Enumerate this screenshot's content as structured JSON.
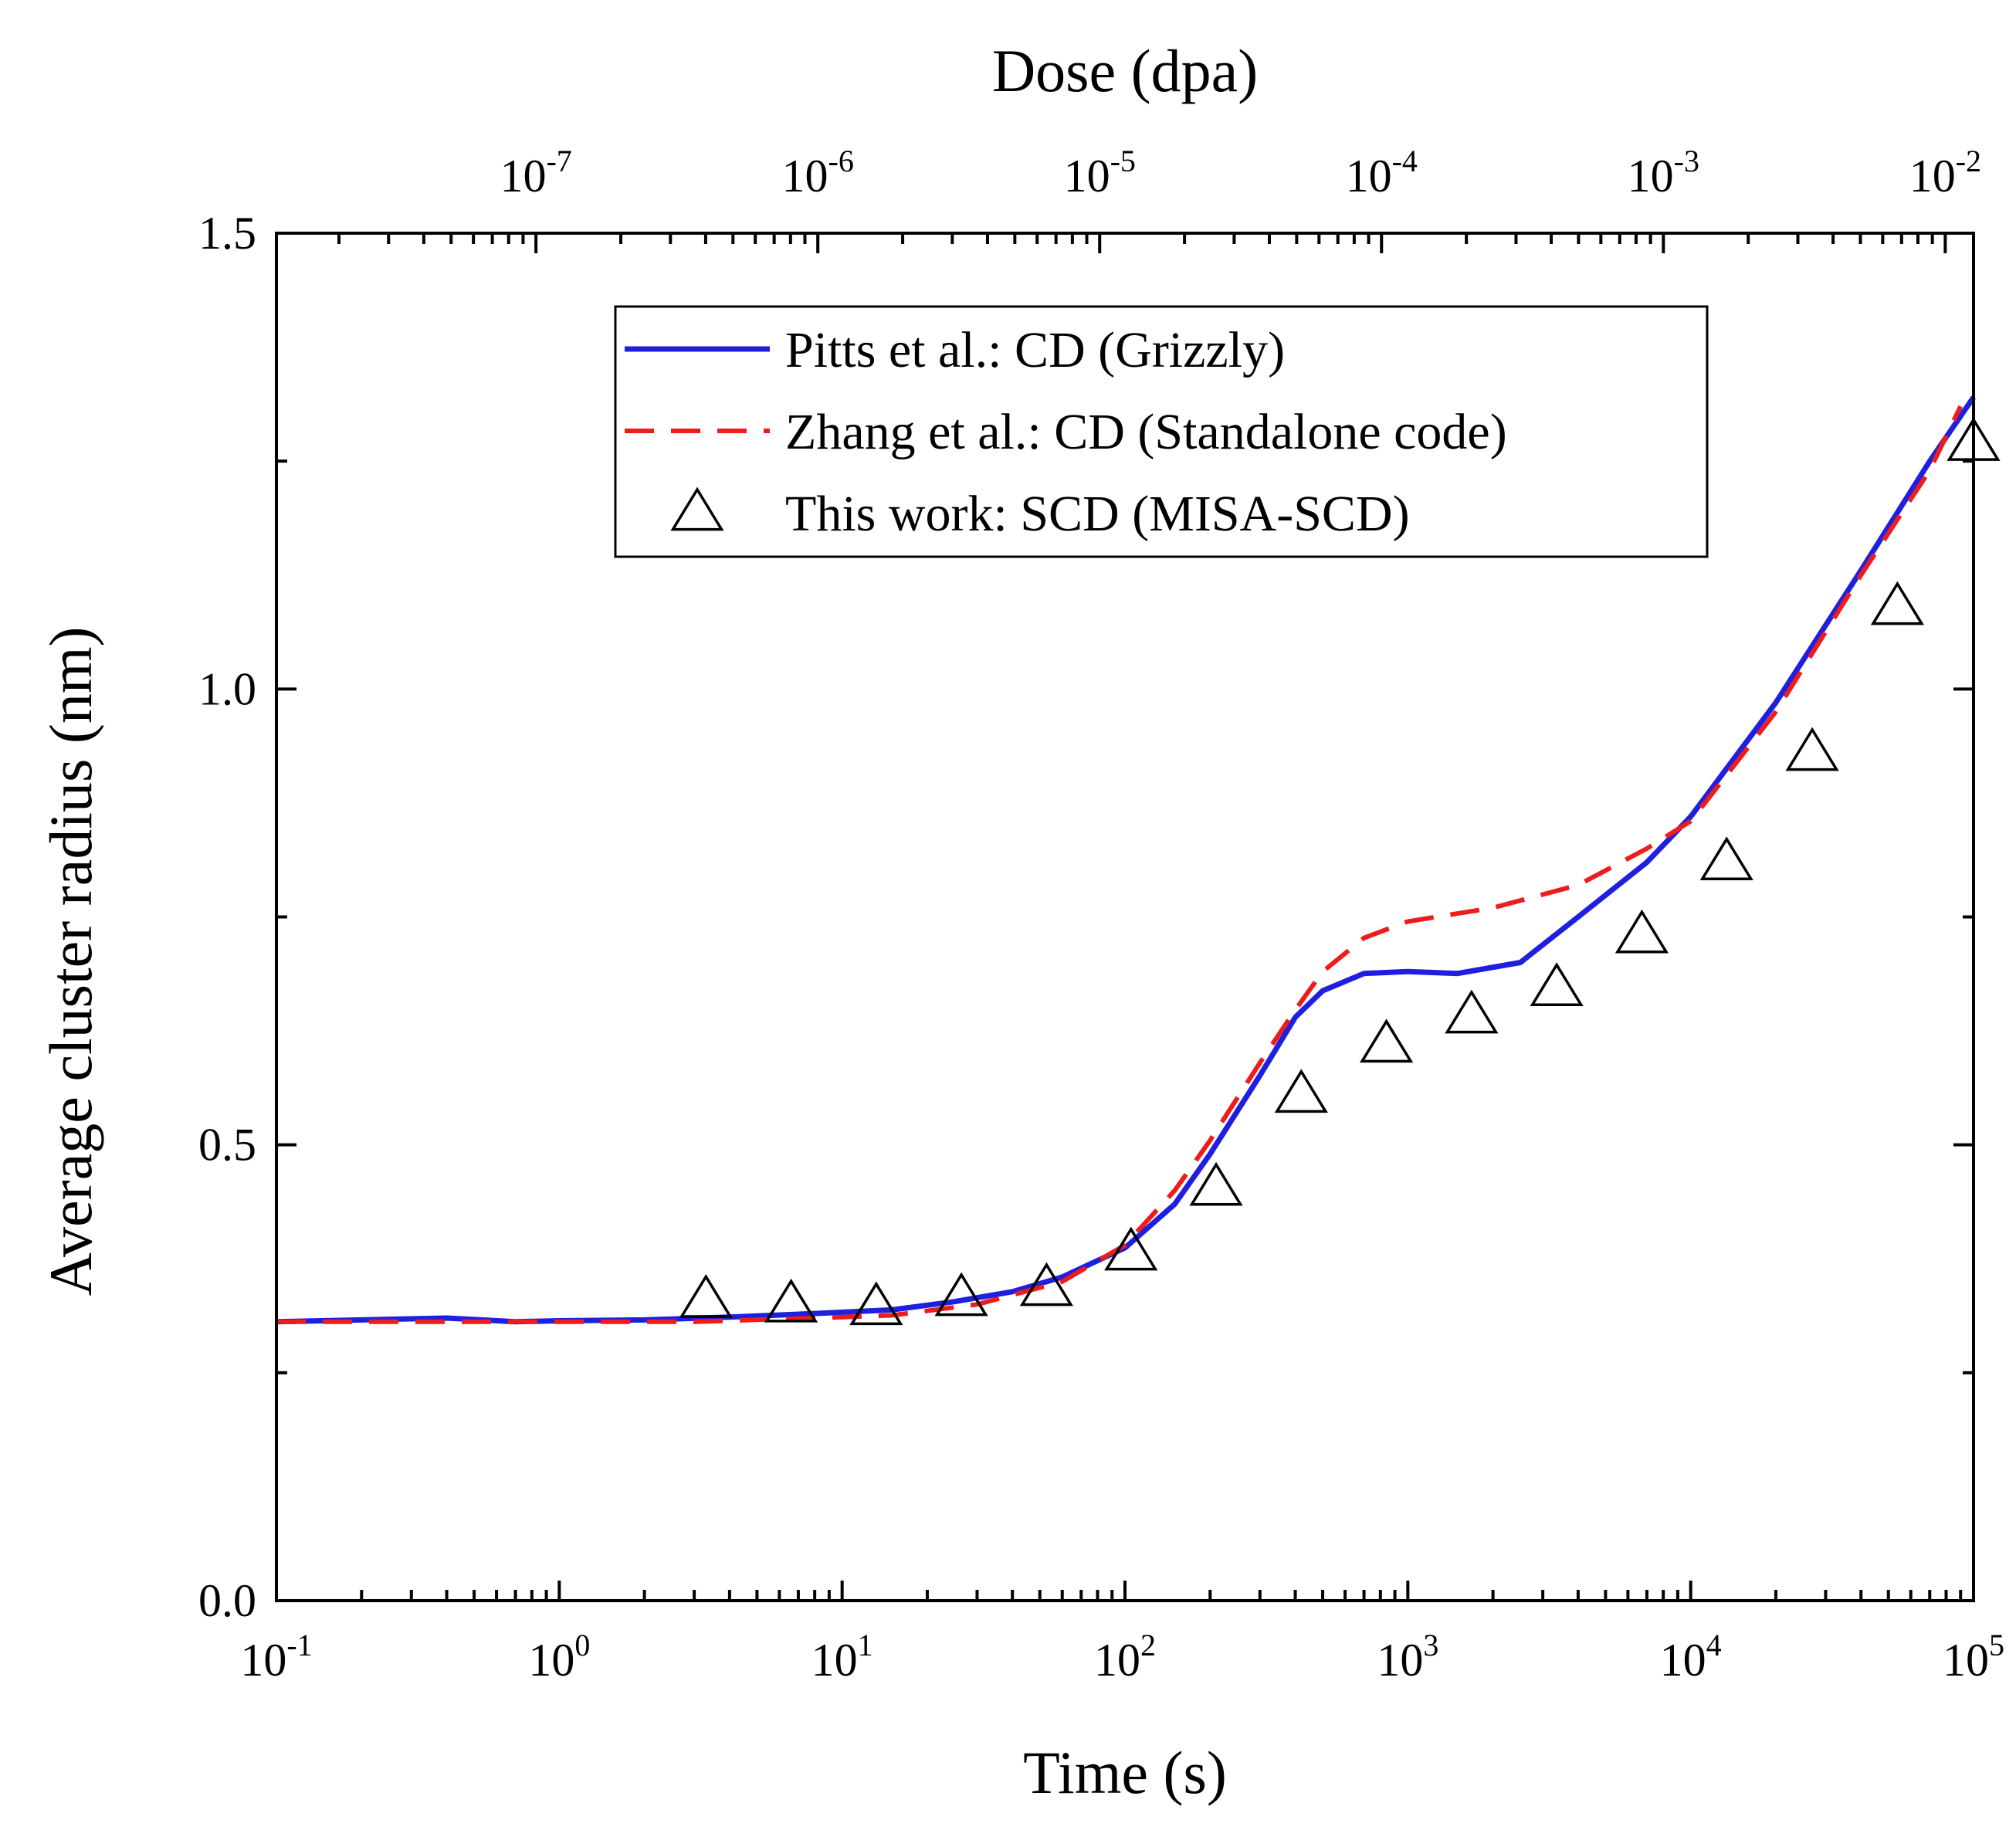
{
  "chart_data": {
    "type": "line",
    "title": "",
    "xlabel": "Time (s)",
    "ylabel": "Average cluster radius (nm)",
    "x2label": "Dose (dpa)",
    "x_scale": "log",
    "x2_scale": "log",
    "xlim": [
      0.1,
      100000
    ],
    "x2lim": [
      1.2e-08,
      0.0126
    ],
    "ylim": [
      0,
      1.5
    ],
    "x_ticks": [
      {
        "base": "10",
        "exp": "-1",
        "value": 0.1
      },
      {
        "base": "10",
        "exp": "0",
        "value": 1
      },
      {
        "base": "10",
        "exp": "1",
        "value": 10
      },
      {
        "base": "10",
        "exp": "2",
        "value": 100
      },
      {
        "base": "10",
        "exp": "3",
        "value": 1000
      },
      {
        "base": "10",
        "exp": "4",
        "value": 10000
      },
      {
        "base": "10",
        "exp": "5",
        "value": 100000
      }
    ],
    "x2_ticks": [
      {
        "base": "10",
        "exp": "-7",
        "value": 1e-07
      },
      {
        "base": "10",
        "exp": "-6",
        "value": 1e-06
      },
      {
        "base": "10",
        "exp": "-5",
        "value": 1e-05
      },
      {
        "base": "10",
        "exp": "-4",
        "value": 0.0001
      },
      {
        "base": "10",
        "exp": "-3",
        "value": 0.001
      },
      {
        "base": "10",
        "exp": "-2",
        "value": 0.01
      }
    ],
    "y_ticks": [
      {
        "label": "0.0",
        "value": 0.0
      },
      {
        "label": "0.5",
        "value": 0.5
      },
      {
        "label": "1.0",
        "value": 1.0
      },
      {
        "label": "1.5",
        "value": 1.5
      }
    ],
    "legend": {
      "position": "top-center"
    },
    "series": [
      {
        "name": "Pitts et al.: CD (Grizzly)",
        "kind": "line",
        "color": "#1f1fe0",
        "dash": "solid",
        "x": [
          0.1,
          0.2,
          0.4,
          0.7,
          1,
          2,
          4,
          8,
          15,
          25,
          40,
          60,
          100,
          150,
          200,
          300,
          400,
          500,
          700,
          1000,
          1500,
          2500,
          4000,
          7000,
          10000,
          20000,
          40000,
          70000,
          100000
        ],
        "y": [
          0.306,
          0.308,
          0.31,
          0.306,
          0.307,
          0.308,
          0.311,
          0.315,
          0.319,
          0.328,
          0.339,
          0.355,
          0.387,
          0.435,
          0.49,
          0.576,
          0.64,
          0.669,
          0.688,
          0.69,
          0.688,
          0.7,
          0.75,
          0.81,
          0.86,
          0.985,
          1.13,
          1.25,
          1.32
        ]
      },
      {
        "name": "Zhang et al.: CD (Standalone code)",
        "kind": "line",
        "color": "#ee1c1c",
        "dash": "dashed",
        "x": [
          0.1,
          0.3,
          1,
          3,
          8,
          15,
          30,
          60,
          100,
          150,
          200,
          300,
          400,
          500,
          700,
          1000,
          2000,
          4000,
          7000,
          10000,
          20000,
          40000,
          70000,
          90000
        ],
        "y": [
          0.306,
          0.306,
          0.306,
          0.306,
          0.31,
          0.313,
          0.325,
          0.35,
          0.39,
          0.45,
          0.505,
          0.59,
          0.648,
          0.69,
          0.727,
          0.745,
          0.76,
          0.785,
          0.825,
          0.855,
          0.975,
          1.125,
          1.24,
          1.31
        ]
      },
      {
        "name": "This work: SCD (MISA-SCD)",
        "kind": "scatter",
        "marker": "open-triangle",
        "color": "#000000",
        "x": [
          3.3,
          6.6,
          13.2,
          26.4,
          52.8,
          105,
          210,
          420,
          840,
          1680,
          3360,
          6720,
          13400,
          26900,
          53800,
          100000
        ],
        "y": [
          0.33,
          0.325,
          0.322,
          0.332,
          0.343,
          0.382,
          0.453,
          0.555,
          0.61,
          0.642,
          0.672,
          0.73,
          0.81,
          0.93,
          1.09,
          1.27
        ]
      }
    ]
  }
}
